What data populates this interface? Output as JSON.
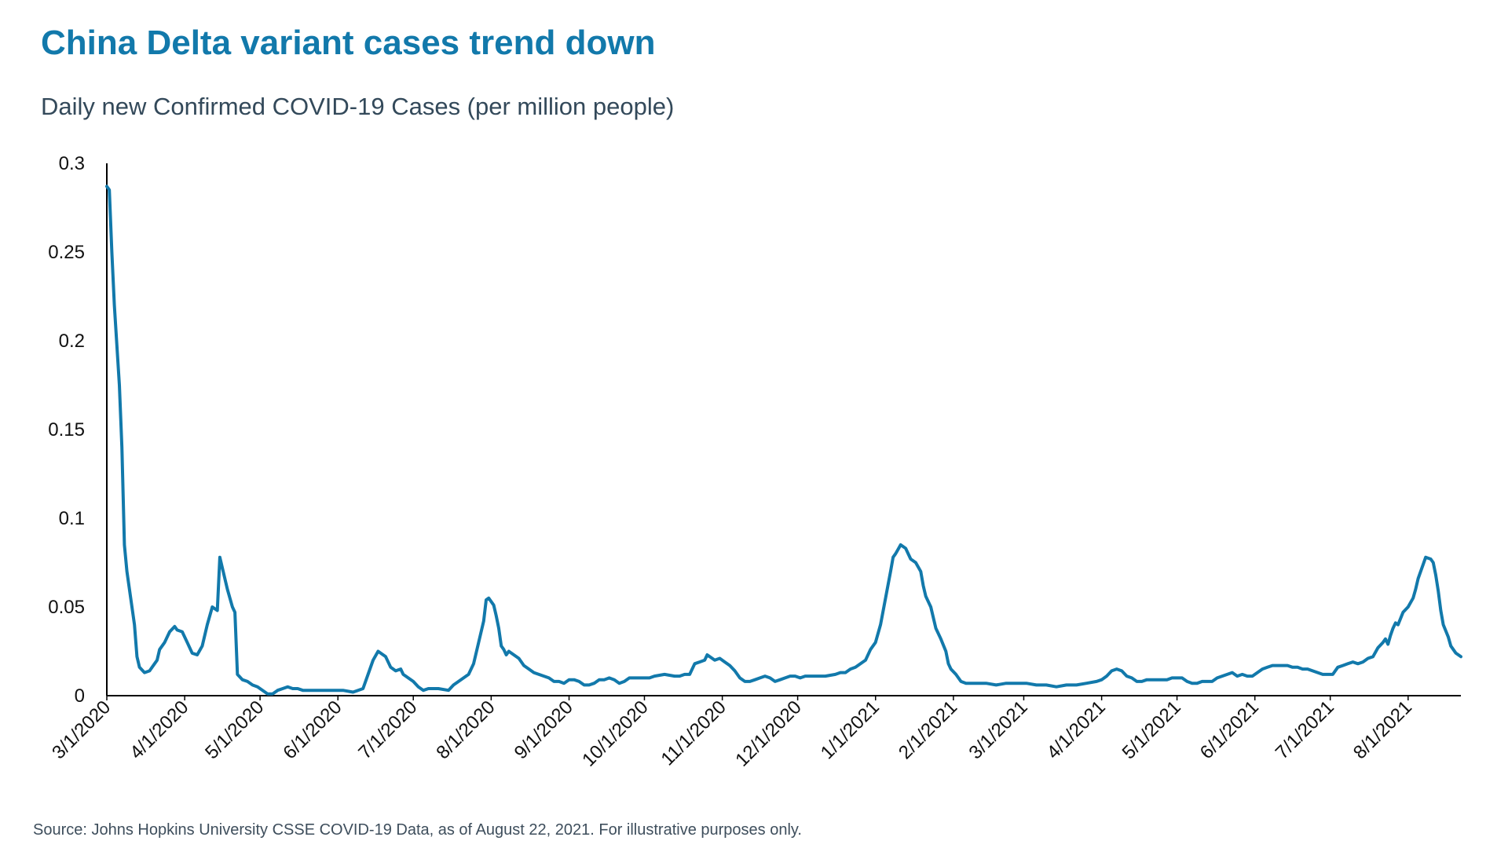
{
  "header": {
    "title": "China Delta variant cases trend down",
    "subtitle": "Daily new Confirmed COVID-19 Cases (per million people)"
  },
  "footer": {
    "source": "Source: Johns Hopkins University CSSE COVID-19 Data, as of August 22, 2021. For illustrative purposes only."
  },
  "chart_data": {
    "type": "line",
    "title": "China Delta variant cases trend down",
    "subtitle": "Daily new Confirmed COVID-19 Cases (per million people)",
    "xlabel": "",
    "ylabel": "",
    "ylim": [
      0,
      0.3
    ],
    "xlim_days": [
      0,
      539
    ],
    "grid": false,
    "legend": "none",
    "line_color": "#1279ab",
    "y_ticks": [
      {
        "value": 0,
        "label": "0"
      },
      {
        "value": 0.05,
        "label": "0.05"
      },
      {
        "value": 0.1,
        "label": "0.1"
      },
      {
        "value": 0.15,
        "label": "0.15"
      },
      {
        "value": 0.2,
        "label": "0.2"
      },
      {
        "value": 0.25,
        "label": "0.25"
      },
      {
        "value": 0.3,
        "label": "0.3"
      }
    ],
    "x_ticks": [
      {
        "day": 0,
        "label": "3/1/2020"
      },
      {
        "day": 31,
        "label": "4/1/2020"
      },
      {
        "day": 61,
        "label": "5/1/2020"
      },
      {
        "day": 92,
        "label": "6/1/2020"
      },
      {
        "day": 122,
        "label": "7/1/2020"
      },
      {
        "day": 153,
        "label": "8/1/2020"
      },
      {
        "day": 184,
        "label": "9/1/2020"
      },
      {
        "day": 214,
        "label": "10/1/2020"
      },
      {
        "day": 245,
        "label": "11/1/2020"
      },
      {
        "day": 275,
        "label": "12/1/2020"
      },
      {
        "day": 306,
        "label": "1/1/2021"
      },
      {
        "day": 337,
        "label": "2/1/2021"
      },
      {
        "day": 365,
        "label": "3/1/2021"
      },
      {
        "day": 396,
        "label": "4/1/2021"
      },
      {
        "day": 426,
        "label": "5/1/2021"
      },
      {
        "day": 457,
        "label": "6/1/2021"
      },
      {
        "day": 487,
        "label": "7/1/2021"
      },
      {
        "day": 518,
        "label": "8/1/2021"
      }
    ],
    "series": [
      {
        "name": "Daily new confirmed cases per million (China)",
        "x_unit": "days since 3/1/2020",
        "points": [
          [
            0,
            0.287
          ],
          [
            1,
            0.285
          ],
          [
            2,
            0.25
          ],
          [
            3,
            0.22
          ],
          [
            5,
            0.175
          ],
          [
            6,
            0.14
          ],
          [
            7,
            0.085
          ],
          [
            8,
            0.07
          ],
          [
            10,
            0.05
          ],
          [
            11,
            0.04
          ],
          [
            12,
            0.022
          ],
          [
            13,
            0.016
          ],
          [
            15,
            0.013
          ],
          [
            17,
            0.014
          ],
          [
            19,
            0.018
          ],
          [
            20,
            0.02
          ],
          [
            21,
            0.026
          ],
          [
            23,
            0.03
          ],
          [
            25,
            0.036
          ],
          [
            27,
            0.039
          ],
          [
            28,
            0.037
          ],
          [
            30,
            0.036
          ],
          [
            32,
            0.03
          ],
          [
            34,
            0.024
          ],
          [
            36,
            0.023
          ],
          [
            38,
            0.028
          ],
          [
            40,
            0.04
          ],
          [
            42,
            0.05
          ],
          [
            44,
            0.048
          ],
          [
            45,
            0.078
          ],
          [
            46,
            0.072
          ],
          [
            48,
            0.06
          ],
          [
            50,
            0.05
          ],
          [
            51,
            0.047
          ],
          [
            52,
            0.012
          ],
          [
            54,
            0.009
          ],
          [
            56,
            0.008
          ],
          [
            58,
            0.006
          ],
          [
            60,
            0.005
          ],
          [
            62,
            0.003
          ],
          [
            64,
            0.001
          ],
          [
            66,
            0.001
          ],
          [
            68,
            0.003
          ],
          [
            70,
            0.004
          ],
          [
            72,
            0.005
          ],
          [
            74,
            0.004
          ],
          [
            76,
            0.004
          ],
          [
            78,
            0.003
          ],
          [
            82,
            0.003
          ],
          [
            86,
            0.003
          ],
          [
            90,
            0.003
          ],
          [
            94,
            0.003
          ],
          [
            98,
            0.002
          ],
          [
            100,
            0.003
          ],
          [
            102,
            0.004
          ],
          [
            104,
            0.012
          ],
          [
            106,
            0.02
          ],
          [
            108,
            0.025
          ],
          [
            109,
            0.024
          ],
          [
            111,
            0.022
          ],
          [
            113,
            0.016
          ],
          [
            115,
            0.014
          ],
          [
            117,
            0.015
          ],
          [
            118,
            0.012
          ],
          [
            120,
            0.01
          ],
          [
            122,
            0.008
          ],
          [
            124,
            0.005
          ],
          [
            126,
            0.003
          ],
          [
            128,
            0.004
          ],
          [
            132,
            0.004
          ],
          [
            136,
            0.003
          ],
          [
            138,
            0.006
          ],
          [
            140,
            0.008
          ],
          [
            142,
            0.01
          ],
          [
            144,
            0.012
          ],
          [
            146,
            0.018
          ],
          [
            148,
            0.03
          ],
          [
            150,
            0.042
          ],
          [
            151,
            0.054
          ],
          [
            152,
            0.055
          ],
          [
            154,
            0.051
          ],
          [
            155,
            0.045
          ],
          [
            156,
            0.038
          ],
          [
            157,
            0.028
          ],
          [
            158,
            0.026
          ],
          [
            159,
            0.023
          ],
          [
            160,
            0.025
          ],
          [
            162,
            0.023
          ],
          [
            164,
            0.021
          ],
          [
            166,
            0.017
          ],
          [
            168,
            0.015
          ],
          [
            170,
            0.013
          ],
          [
            172,
            0.012
          ],
          [
            174,
            0.011
          ],
          [
            176,
            0.01
          ],
          [
            178,
            0.008
          ],
          [
            180,
            0.008
          ],
          [
            182,
            0.007
          ],
          [
            184,
            0.009
          ],
          [
            186,
            0.009
          ],
          [
            188,
            0.008
          ],
          [
            190,
            0.006
          ],
          [
            192,
            0.006
          ],
          [
            194,
            0.007
          ],
          [
            196,
            0.009
          ],
          [
            198,
            0.009
          ],
          [
            200,
            0.01
          ],
          [
            202,
            0.009
          ],
          [
            204,
            0.007
          ],
          [
            206,
            0.008
          ],
          [
            208,
            0.01
          ],
          [
            212,
            0.01
          ],
          [
            216,
            0.01
          ],
          [
            218,
            0.011
          ],
          [
            222,
            0.012
          ],
          [
            226,
            0.011
          ],
          [
            228,
            0.011
          ],
          [
            230,
            0.012
          ],
          [
            232,
            0.012
          ],
          [
            234,
            0.018
          ],
          [
            236,
            0.019
          ],
          [
            238,
            0.02
          ],
          [
            239,
            0.023
          ],
          [
            240,
            0.022
          ],
          [
            242,
            0.02
          ],
          [
            244,
            0.021
          ],
          [
            246,
            0.019
          ],
          [
            248,
            0.017
          ],
          [
            250,
            0.014
          ],
          [
            252,
            0.01
          ],
          [
            254,
            0.008
          ],
          [
            256,
            0.008
          ],
          [
            258,
            0.009
          ],
          [
            260,
            0.01
          ],
          [
            262,
            0.011
          ],
          [
            264,
            0.01
          ],
          [
            266,
            0.008
          ],
          [
            268,
            0.009
          ],
          [
            270,
            0.01
          ],
          [
            272,
            0.011
          ],
          [
            274,
            0.011
          ],
          [
            276,
            0.01
          ],
          [
            278,
            0.011
          ],
          [
            282,
            0.011
          ],
          [
            286,
            0.011
          ],
          [
            290,
            0.012
          ],
          [
            292,
            0.013
          ],
          [
            294,
            0.013
          ],
          [
            296,
            0.015
          ],
          [
            298,
            0.016
          ],
          [
            300,
            0.018
          ],
          [
            302,
            0.02
          ],
          [
            304,
            0.026
          ],
          [
            306,
            0.03
          ],
          [
            308,
            0.04
          ],
          [
            310,
            0.055
          ],
          [
            312,
            0.07
          ],
          [
            313,
            0.078
          ],
          [
            314,
            0.08
          ],
          [
            316,
            0.085
          ],
          [
            318,
            0.083
          ],
          [
            320,
            0.077
          ],
          [
            322,
            0.075
          ],
          [
            324,
            0.07
          ],
          [
            325,
            0.062
          ],
          [
            326,
            0.056
          ],
          [
            328,
            0.05
          ],
          [
            330,
            0.038
          ],
          [
            332,
            0.032
          ],
          [
            334,
            0.025
          ],
          [
            335,
            0.018
          ],
          [
            336,
            0.015
          ],
          [
            338,
            0.012
          ],
          [
            340,
            0.008
          ],
          [
            342,
            0.007
          ],
          [
            346,
            0.007
          ],
          [
            350,
            0.007
          ],
          [
            354,
            0.006
          ],
          [
            358,
            0.007
          ],
          [
            362,
            0.007
          ],
          [
            366,
            0.007
          ],
          [
            370,
            0.006
          ],
          [
            374,
            0.006
          ],
          [
            378,
            0.005
          ],
          [
            382,
            0.006
          ],
          [
            386,
            0.006
          ],
          [
            390,
            0.007
          ],
          [
            394,
            0.008
          ],
          [
            396,
            0.009
          ],
          [
            398,
            0.011
          ],
          [
            400,
            0.014
          ],
          [
            402,
            0.015
          ],
          [
            404,
            0.014
          ],
          [
            406,
            0.011
          ],
          [
            408,
            0.01
          ],
          [
            410,
            0.008
          ],
          [
            412,
            0.008
          ],
          [
            414,
            0.009
          ],
          [
            418,
            0.009
          ],
          [
            420,
            0.009
          ],
          [
            422,
            0.009
          ],
          [
            424,
            0.01
          ],
          [
            428,
            0.01
          ],
          [
            430,
            0.008
          ],
          [
            432,
            0.007
          ],
          [
            434,
            0.007
          ],
          [
            436,
            0.008
          ],
          [
            440,
            0.008
          ],
          [
            442,
            0.01
          ],
          [
            444,
            0.011
          ],
          [
            446,
            0.012
          ],
          [
            448,
            0.013
          ],
          [
            450,
            0.011
          ],
          [
            452,
            0.012
          ],
          [
            454,
            0.011
          ],
          [
            456,
            0.011
          ],
          [
            458,
            0.013
          ],
          [
            460,
            0.015
          ],
          [
            462,
            0.016
          ],
          [
            464,
            0.017
          ],
          [
            466,
            0.017
          ],
          [
            468,
            0.017
          ],
          [
            470,
            0.017
          ],
          [
            472,
            0.016
          ],
          [
            474,
            0.016
          ],
          [
            476,
            0.015
          ],
          [
            478,
            0.015
          ],
          [
            480,
            0.014
          ],
          [
            482,
            0.013
          ],
          [
            484,
            0.012
          ],
          [
            486,
            0.012
          ],
          [
            488,
            0.012
          ],
          [
            490,
            0.016
          ],
          [
            492,
            0.017
          ],
          [
            494,
            0.018
          ],
          [
            496,
            0.019
          ],
          [
            498,
            0.018
          ],
          [
            500,
            0.019
          ],
          [
            502,
            0.021
          ],
          [
            504,
            0.022
          ],
          [
            506,
            0.027
          ],
          [
            508,
            0.03
          ],
          [
            509,
            0.032
          ],
          [
            510,
            0.029
          ],
          [
            511,
            0.034
          ],
          [
            512,
            0.038
          ],
          [
            513,
            0.041
          ],
          [
            514,
            0.04
          ],
          [
            516,
            0.047
          ],
          [
            518,
            0.05
          ],
          [
            520,
            0.055
          ],
          [
            521,
            0.06
          ],
          [
            522,
            0.066
          ],
          [
            523,
            0.07
          ],
          [
            524,
            0.074
          ],
          [
            525,
            0.078
          ],
          [
            527,
            0.077
          ],
          [
            528,
            0.075
          ],
          [
            529,
            0.068
          ],
          [
            530,
            0.059
          ],
          [
            531,
            0.048
          ],
          [
            532,
            0.04
          ],
          [
            534,
            0.033
          ],
          [
            535,
            0.028
          ],
          [
            537,
            0.024
          ],
          [
            539,
            0.022
          ]
        ]
      }
    ]
  }
}
